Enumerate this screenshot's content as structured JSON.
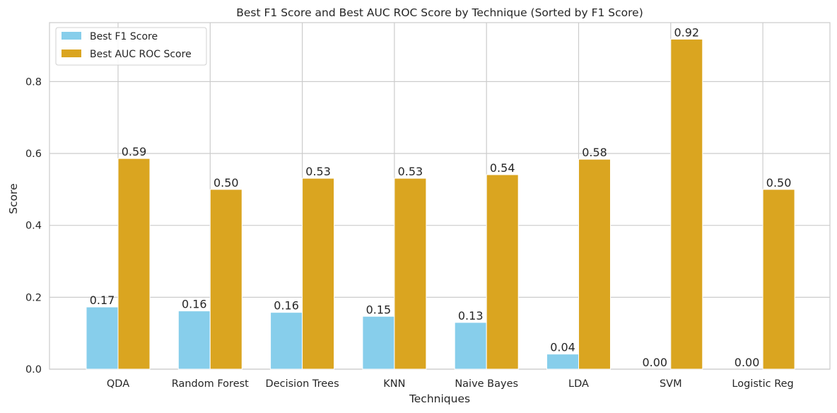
{
  "chart_data": {
    "type": "bar",
    "title": "Best F1 Score and Best AUC ROC Score by Technique (Sorted by F1 Score)",
    "xlabel": "Techniques",
    "ylabel": "Score",
    "categories": [
      "QDA",
      "Random Forest",
      "Decision Trees",
      "KNN",
      "Naive Bayes",
      "LDA",
      "SVM",
      "Logistic Reg"
    ],
    "series": [
      {
        "name": "Best F1 Score",
        "color": "#87ceeb",
        "values": [
          0.173,
          0.162,
          0.158,
          0.147,
          0.13,
          0.042,
          0.0,
          0.0
        ],
        "labels": [
          "0.17",
          "0.16",
          "0.16",
          "0.15",
          "0.13",
          "0.04",
          "0.00",
          "0.00"
        ]
      },
      {
        "name": "Best AUC ROC Score",
        "color": "#daa520",
        "values": [
          0.586,
          0.5,
          0.531,
          0.531,
          0.541,
          0.584,
          0.918,
          0.5
        ],
        "labels": [
          "0.59",
          "0.50",
          "0.53",
          "0.53",
          "0.54",
          "0.58",
          "0.92",
          "0.50"
        ]
      }
    ],
    "ylim": [
      0,
      0.964
    ],
    "yticks": [
      0.0,
      0.2,
      0.4,
      0.6,
      0.8
    ],
    "ytick_labels": [
      "0.0",
      "0.2",
      "0.4",
      "0.6",
      "0.8"
    ],
    "grid": true,
    "legend_position": "upper-left"
  }
}
